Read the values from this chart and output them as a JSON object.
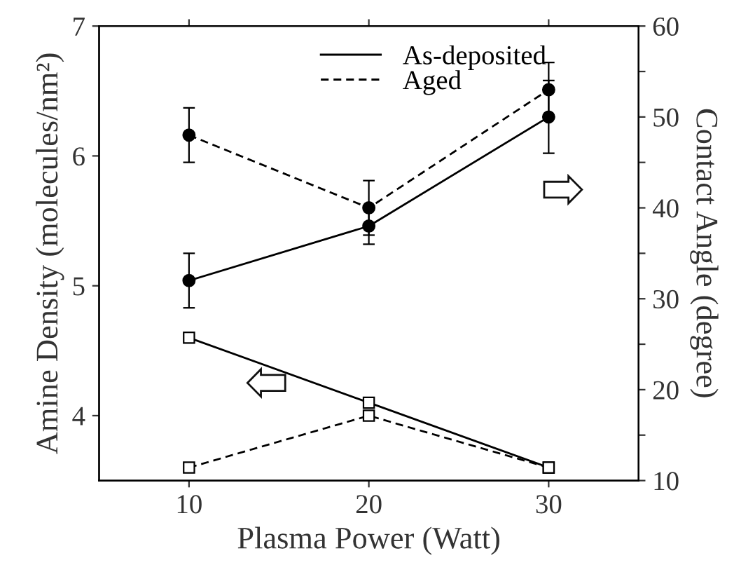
{
  "chart_data": {
    "type": "line",
    "xlabel": "Plasma Power (Watt)",
    "ylabel": "Amine Density (molecules/nm²)",
    "y2label": "Contact Angle (degree)",
    "x": [
      10,
      20,
      30
    ],
    "xlim": [
      5,
      35
    ],
    "xticks": [
      10,
      20,
      30
    ],
    "ylim": [
      3.5,
      7
    ],
    "yticks": [
      4,
      5,
      6,
      7
    ],
    "y2lim": [
      10,
      60
    ],
    "y2ticks": [
      10,
      {
        "value": 15,
        "label": null
      },
      20,
      {
        "value": 25,
        "label": null
      },
      30,
      {
        "value": 35,
        "label": null
      },
      40,
      {
        "value": 45,
        "label": null
      },
      50,
      {
        "value": 55,
        "label": null
      },
      60
    ],
    "legend": "top",
    "grid": false,
    "series": [
      {
        "name": "As-deposited",
        "color": "#000000",
        "axis": "y2",
        "marker": "circle",
        "line_style": "solid",
        "values": [
          32,
          38,
          50
        ],
        "errors": [
          3,
          2,
          4
        ]
      },
      {
        "name": "Aged",
        "color": "#000000",
        "axis": "y2",
        "marker": "circle",
        "line_style": "dashed",
        "values": [
          48,
          40,
          53
        ],
        "errors": [
          3,
          3,
          3
        ]
      },
      {
        "color": "#000000",
        "axis": "y",
        "marker": "square",
        "line_style": "solid",
        "values": [
          4.6,
          4.1,
          3.6
        ]
      },
      {
        "color": "#000000",
        "axis": "y",
        "marker": "square",
        "line_style": "dashed",
        "values": [
          3.6,
          4.0,
          3.6
        ]
      }
    ]
  }
}
